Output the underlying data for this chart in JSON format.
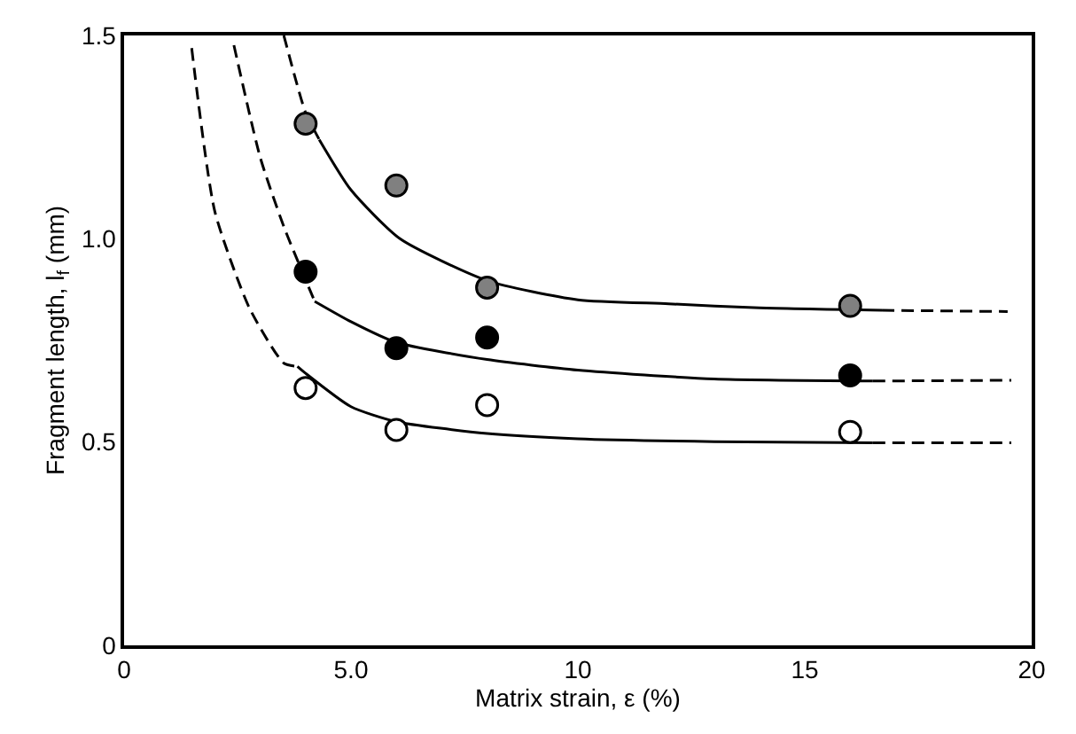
{
  "chart_data": {
    "type": "scatter",
    "xlabel": "Matrix strain, ε (%)",
    "ylabel": "Fragment length, l$_{f}$ (mm)",
    "xlim": [
      0,
      20
    ],
    "ylim": [
      0,
      1.5
    ],
    "xticks": [
      0,
      {
        "value": 5,
        "label": "5.0"
      },
      10,
      15,
      20
    ],
    "yticks": [
      0,
      0.5,
      {
        "value": 1,
        "label": "1.0"
      },
      1.5
    ],
    "series": [
      {
        "type": "line",
        "color": "#000000",
        "line_style": "dashed",
        "x": [
          3.52,
          3.79,
          4.0,
          4.3
        ],
        "values": [
          1.5,
          1.388,
          1.31,
          1.244
        ]
      },
      {
        "type": "line",
        "color": "#000000",
        "line_style": "solid",
        "x": [
          4.3,
          5.0,
          6.08,
          8.0,
          10.0,
          12.0,
          14.0,
          16.7
        ],
        "values": [
          1.244,
          1.12,
          1.0,
          0.897,
          0.85,
          0.84,
          0.83,
          0.824
        ]
      },
      {
        "type": "line",
        "color": "#000000",
        "line_style": "dashed",
        "x": [
          16.7,
          19.47
        ],
        "values": [
          0.824,
          0.821
        ]
      },
      {
        "type": "line",
        "color": "#000000",
        "line_style": "dashed",
        "x": [
          2.42,
          3.0,
          3.52,
          4.2
        ],
        "values": [
          1.476,
          1.2,
          1.03,
          0.846
        ]
      },
      {
        "type": "line",
        "color": "#000000",
        "line_style": "solid",
        "x": [
          4.2,
          5.0,
          6.0,
          8.0,
          10.0,
          13.0,
          16.5
        ],
        "values": [
          0.846,
          0.796,
          0.745,
          0.703,
          0.677,
          0.655,
          0.65
        ]
      },
      {
        "type": "line",
        "color": "#000000",
        "line_style": "dashed",
        "x": [
          16.5,
          19.55
        ],
        "values": [
          0.65,
          0.652
        ]
      },
      {
        "type": "line",
        "color": "#000000",
        "line_style": "dashed",
        "x": [
          1.49,
          2.0,
          2.76,
          3.52,
          3.82
        ],
        "values": [
          1.469,
          1.067,
          0.83,
          0.694,
          0.686
        ]
      },
      {
        "type": "line",
        "color": "#000000",
        "line_style": "solid",
        "x": [
          3.82,
          4.0,
          5.0,
          6.0,
          8.0,
          10.0,
          13.0,
          16.5
        ],
        "values": [
          0.686,
          0.669,
          0.587,
          0.55,
          0.521,
          0.508,
          0.501,
          0.498
        ]
      },
      {
        "type": "line",
        "color": "#000000",
        "line_style": "dashed",
        "x": [
          16.5,
          19.55
        ],
        "values": [
          0.498,
          0.498
        ]
      },
      {
        "marker": "circle",
        "color": "#808080",
        "x": [
          4,
          6,
          8,
          16
        ],
        "values": [
          1.283,
          1.131,
          0.88,
          0.835
        ]
      },
      {
        "marker": "circle",
        "color": "#000000",
        "x": [
          4,
          6,
          8,
          16
        ],
        "values": [
          0.919,
          0.731,
          0.757,
          0.664
        ]
      },
      {
        "marker": "circle",
        "color": "#ffffff",
        "x": [
          4,
          6,
          8,
          16
        ],
        "values": [
          0.633,
          0.53,
          0.591,
          0.525
        ]
      }
    ]
  }
}
